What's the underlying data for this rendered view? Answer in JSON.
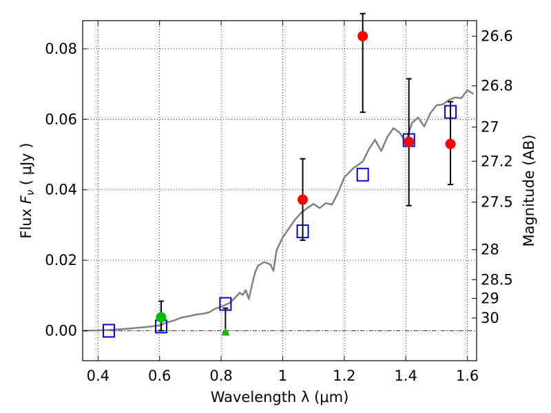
{
  "chart_data": {
    "type": "scatter",
    "title": "",
    "xlabel": "Wavelength  λ (μm)",
    "ylabel": "Flux  F_ν  ( μJy )",
    "ylabel_parts": {
      "prefix": "Flux  ",
      "symbol": "F",
      "subscript": "ν",
      "suffix": "  ( μJy )"
    },
    "y2label": "Magnitude (AB)",
    "xlim": [
      0.35,
      1.63
    ],
    "ylim": [
      -0.0085,
      0.088
    ],
    "grid": true,
    "x_ticks": [
      0.4,
      0.6,
      0.8,
      1.0,
      1.2,
      1.4,
      1.6
    ],
    "x_tick_labels": [
      "0.4",
      "0.6",
      "0.8",
      "1",
      "1.2",
      "1.4",
      "1.6"
    ],
    "y_ticks": [
      0.0,
      0.02,
      0.04,
      0.06,
      0.08
    ],
    "y_tick_labels": [
      "0.00",
      "0.02",
      "0.04",
      "0.06",
      "0.08"
    ],
    "y2_ticks": [
      {
        "label": "26.6",
        "flux": 0.0836
      },
      {
        "label": "26.8",
        "flux": 0.0695
      },
      {
        "label": "27",
        "flux": 0.0578
      },
      {
        "label": "27.2",
        "flux": 0.0481
      },
      {
        "label": "27.5",
        "flux": 0.0365
      },
      {
        "label": "28",
        "flux": 0.023
      },
      {
        "label": "28.5",
        "flux": 0.0145
      },
      {
        "label": "29",
        "flux": 0.0092
      },
      {
        "label": "30",
        "flux": 0.0036
      }
    ],
    "series": [
      {
        "kind": "line",
        "color": "#808080",
        "x": [
          0.35,
          0.4,
          0.45,
          0.5,
          0.55,
          0.6,
          0.62,
          0.65,
          0.67,
          0.7,
          0.72,
          0.74,
          0.76,
          0.78,
          0.8,
          0.81,
          0.83,
          0.85,
          0.86,
          0.87,
          0.88,
          0.89,
          0.9,
          0.91,
          0.92,
          0.94,
          0.96,
          0.97,
          0.98,
          1.0,
          1.02,
          1.04,
          1.06,
          1.08,
          1.1,
          1.12,
          1.14,
          1.16,
          1.18,
          1.2,
          1.23,
          1.26,
          1.28,
          1.3,
          1.32,
          1.34,
          1.36,
          1.38,
          1.4,
          1.42,
          1.44,
          1.46,
          1.48,
          1.5,
          1.52,
          1.54,
          1.56,
          1.58,
          1.6,
          1.62
        ],
        "y": [
          0.0,
          0.0001,
          0.0003,
          0.0006,
          0.001,
          0.0015,
          0.0022,
          0.003,
          0.0037,
          0.0042,
          0.0046,
          0.0048,
          0.0052,
          0.0062,
          0.0068,
          0.0072,
          0.008,
          0.0098,
          0.0108,
          0.0102,
          0.0115,
          0.009,
          0.013,
          0.0165,
          0.0185,
          0.0195,
          0.0188,
          0.017,
          0.0228,
          0.0265,
          0.029,
          0.0315,
          0.0335,
          0.0348,
          0.036,
          0.0348,
          0.0362,
          0.0358,
          0.0392,
          0.0435,
          0.0462,
          0.048,
          0.0515,
          0.0542,
          0.051,
          0.055,
          0.0575,
          0.0562,
          0.0535,
          0.059,
          0.0605,
          0.058,
          0.0618,
          0.064,
          0.0642,
          0.0655,
          0.0662,
          0.066,
          0.0683,
          0.0672
        ]
      },
      {
        "kind": "open-square",
        "color": "#0000cc",
        "x": [
          0.435,
          0.605,
          0.814,
          1.065,
          1.26,
          1.41,
          1.545
        ],
        "y": [
          0.0,
          0.0012,
          0.0076,
          0.0282,
          0.0443,
          0.0541,
          0.0621
        ]
      },
      {
        "kind": "filled-circle",
        "color": "#ff0000",
        "x": [
          1.065,
          1.26,
          1.41,
          1.545
        ],
        "y": [
          0.0372,
          0.0836,
          0.0536,
          0.053
        ],
        "yerr": [
          [
            0.0257,
            0.0488
          ],
          [
            0.062,
            0.09
          ],
          [
            0.0355,
            0.0715
          ],
          [
            0.0415,
            0.065
          ]
        ]
      },
      {
        "kind": "filled-circle",
        "color": "#00bb00",
        "x": [
          0.605
        ],
        "y": [
          0.0038
        ],
        "yerr": [
          [
            0.0,
            0.0084
          ]
        ]
      },
      {
        "kind": "triangle-up",
        "color": "#00bb00",
        "x": [
          0.814
        ],
        "y": [
          -0.0004
        ],
        "yerr": [
          [
            -0.0004,
            0.0064
          ]
        ]
      }
    ],
    "reference_line": {
      "y": 0.0,
      "style": "dash-dot",
      "color": "#000000"
    }
  }
}
